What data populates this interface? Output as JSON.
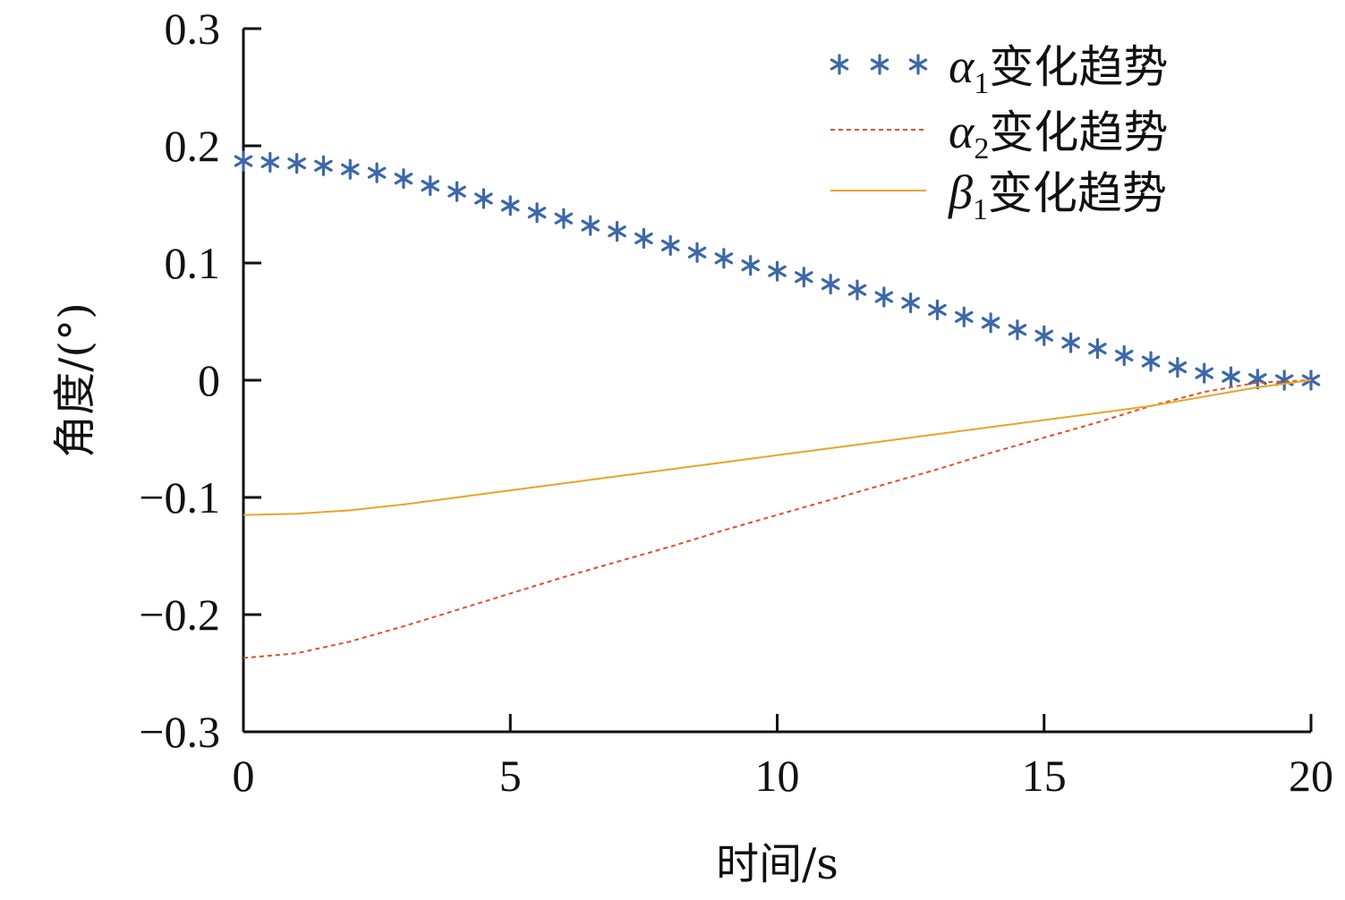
{
  "chart_data": {
    "type": "line",
    "xlabel": "时间/s",
    "ylabel": "角度/(°)",
    "xlim": [
      0,
      20
    ],
    "ylim": [
      -0.3,
      0.3
    ],
    "xticks": [
      0,
      5,
      10,
      15,
      20
    ],
    "xtick_labels": [
      "0",
      "5",
      "10",
      "15",
      "20"
    ],
    "yticks": [
      0.3,
      0.2,
      0.1,
      0,
      -0.1,
      -0.2,
      -0.3
    ],
    "ytick_labels": [
      "0.3",
      "0.2",
      "0.1",
      "0",
      "−0.1",
      "−0.2",
      "−0.3"
    ],
    "grid": false,
    "legend_position": "top-right",
    "series": [
      {
        "name": "α1变化趋势",
        "legend_symbol": "α",
        "legend_subscript": "1",
        "legend_suffix": "变化趋势",
        "style": "asterisk-markers",
        "color": "#3c68a8",
        "x": [
          0,
          0.5,
          1,
          1.5,
          2,
          2.5,
          3,
          3.5,
          4,
          4.5,
          5,
          5.5,
          6,
          6.5,
          7,
          7.5,
          8,
          8.5,
          9,
          9.5,
          10,
          10.5,
          11,
          11.5,
          12,
          12.5,
          13,
          13.5,
          14,
          14.5,
          15,
          15.5,
          16,
          16.5,
          17,
          17.5,
          18,
          18.5,
          19,
          19.5,
          20
        ],
        "y": [
          0.187,
          0.186,
          0.185,
          0.183,
          0.18,
          0.177,
          0.172,
          0.166,
          0.161,
          0.155,
          0.149,
          0.143,
          0.138,
          0.132,
          0.127,
          0.121,
          0.115,
          0.109,
          0.104,
          0.098,
          0.093,
          0.088,
          0.082,
          0.077,
          0.071,
          0.066,
          0.06,
          0.054,
          0.049,
          0.043,
          0.038,
          0.032,
          0.027,
          0.021,
          0.016,
          0.011,
          0.006,
          0.003,
          0.001,
          0.0,
          0.0
        ]
      },
      {
        "name": "α2变化趋势",
        "legend_symbol": "α",
        "legend_subscript": "2",
        "legend_suffix": "变化趋势",
        "style": "dashed",
        "color": "#e0502a",
        "x": [
          0,
          1,
          2,
          3,
          4,
          5,
          6,
          7,
          8,
          9,
          10,
          11,
          12,
          13,
          14,
          15,
          16,
          17,
          18,
          19,
          20
        ],
        "y": [
          -0.237,
          -0.233,
          -0.223,
          -0.21,
          -0.196,
          -0.182,
          -0.168,
          -0.155,
          -0.142,
          -0.128,
          -0.115,
          -0.102,
          -0.089,
          -0.076,
          -0.062,
          -0.049,
          -0.036,
          -0.022,
          -0.01,
          -0.002,
          0.0
        ]
      },
      {
        "name": "β1变化趋势",
        "legend_symbol": "β",
        "legend_subscript": "1",
        "legend_suffix": "变化趋势",
        "style": "solid",
        "color": "#e8a526",
        "x": [
          0,
          1,
          2,
          3,
          4,
          5,
          6,
          7,
          8,
          9,
          10,
          11,
          12,
          13,
          14,
          15,
          16,
          17,
          18,
          19,
          20
        ],
        "y": [
          -0.115,
          -0.114,
          -0.111,
          -0.106,
          -0.1,
          -0.094,
          -0.088,
          -0.082,
          -0.076,
          -0.07,
          -0.064,
          -0.058,
          -0.052,
          -0.046,
          -0.04,
          -0.034,
          -0.028,
          -0.022,
          -0.014,
          -0.006,
          0.0
        ]
      }
    ]
  }
}
